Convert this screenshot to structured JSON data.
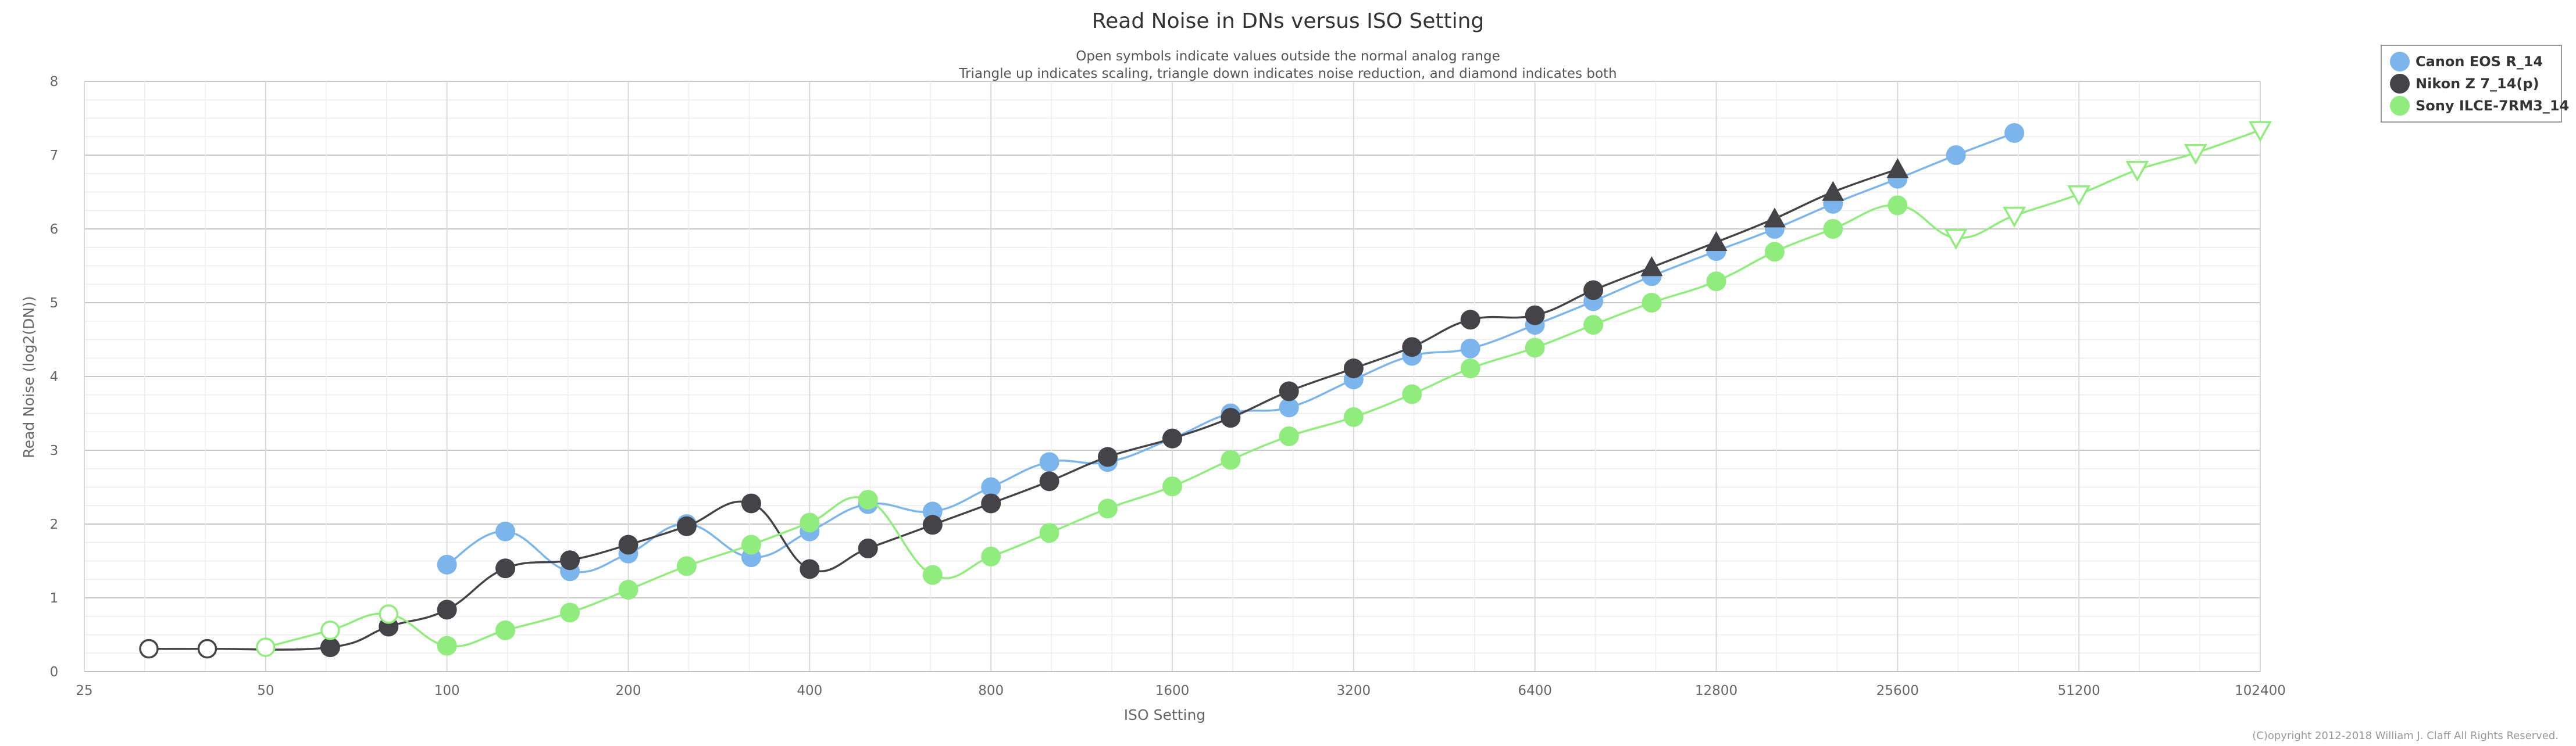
{
  "chart_data": {
    "type": "line",
    "title": "Read Noise in DNs versus ISO Setting",
    "subtitle_lines": [
      "Open symbols indicate values outside the normal analog range",
      "Triangle up indicates scaling, triangle down indicates noise reduction, and diamond indicates both"
    ],
    "xlabel": "ISO Setting",
    "ylabel": "Read Noise (log2(DN))",
    "x_scale": "log2",
    "xlim": [
      25,
      102400
    ],
    "ylim": [
      0,
      8
    ],
    "x_ticks": [
      25,
      50,
      100,
      200,
      400,
      800,
      1600,
      3200,
      6400,
      12800,
      25600,
      51200,
      102400
    ],
    "y_ticks": [
      0,
      1,
      2,
      3,
      4,
      5,
      6,
      7,
      8
    ],
    "grid": true,
    "legend_position": "top-right",
    "copyright": "(C)opyright 2012-2018 William J. Claff All Rights Reserved.",
    "series": [
      {
        "name": "Canon EOS R_14",
        "color": "#7cb5ec",
        "points": [
          {
            "x": 100,
            "y": 1.45,
            "m": "circle"
          },
          {
            "x": 125,
            "y": 1.9,
            "m": "circle"
          },
          {
            "x": 160,
            "y": 1.36,
            "m": "circle"
          },
          {
            "x": 200,
            "y": 1.6,
            "m": "circle"
          },
          {
            "x": 250,
            "y": 2.0,
            "m": "circle"
          },
          {
            "x": 320,
            "y": 1.55,
            "m": "circle"
          },
          {
            "x": 400,
            "y": 1.9,
            "m": "circle"
          },
          {
            "x": 500,
            "y": 2.27,
            "m": "circle"
          },
          {
            "x": 640,
            "y": 2.17,
            "m": "circle"
          },
          {
            "x": 800,
            "y": 2.5,
            "m": "circle"
          },
          {
            "x": 1000,
            "y": 2.84,
            "m": "circle"
          },
          {
            "x": 1250,
            "y": 2.84,
            "m": "circle"
          },
          {
            "x": 1600,
            "y": 3.16,
            "m": "circle"
          },
          {
            "x": 2000,
            "y": 3.5,
            "m": "circle"
          },
          {
            "x": 2500,
            "y": 3.58,
            "m": "circle"
          },
          {
            "x": 3200,
            "y": 3.96,
            "m": "circle"
          },
          {
            "x": 4000,
            "y": 4.28,
            "m": "circle"
          },
          {
            "x": 5000,
            "y": 4.38,
            "m": "circle"
          },
          {
            "x": 6400,
            "y": 4.7,
            "m": "circle"
          },
          {
            "x": 8000,
            "y": 5.02,
            "m": "circle"
          },
          {
            "x": 10000,
            "y": 5.36,
            "m": "circle"
          },
          {
            "x": 12800,
            "y": 5.7,
            "m": "circle"
          },
          {
            "x": 16000,
            "y": 6.0,
            "m": "circle"
          },
          {
            "x": 20000,
            "y": 6.34,
            "m": "circle"
          },
          {
            "x": 25600,
            "y": 6.68,
            "m": "circle"
          },
          {
            "x": 32000,
            "y": 7.0,
            "m": "circle"
          },
          {
            "x": 40000,
            "y": 7.3,
            "m": "circle"
          }
        ]
      },
      {
        "name": "Nikon Z 7_14(p)",
        "color": "#434348",
        "points": [
          {
            "x": 32,
            "y": 0.31,
            "m": "circle-open"
          },
          {
            "x": 40,
            "y": 0.31,
            "m": "circle-open"
          },
          {
            "x": 64,
            "y": 0.33,
            "m": "circle"
          },
          {
            "x": 80,
            "y": 0.61,
            "m": "circle"
          },
          {
            "x": 100,
            "y": 0.84,
            "m": "circle"
          },
          {
            "x": 125,
            "y": 1.4,
            "m": "circle"
          },
          {
            "x": 160,
            "y": 1.51,
            "m": "circle"
          },
          {
            "x": 200,
            "y": 1.72,
            "m": "circle"
          },
          {
            "x": 250,
            "y": 1.97,
            "m": "circle"
          },
          {
            "x": 320,
            "y": 2.28,
            "m": "circle"
          },
          {
            "x": 400,
            "y": 1.39,
            "m": "circle"
          },
          {
            "x": 500,
            "y": 1.67,
            "m": "circle"
          },
          {
            "x": 640,
            "y": 1.99,
            "m": "circle"
          },
          {
            "x": 800,
            "y": 2.28,
            "m": "circle"
          },
          {
            "x": 1000,
            "y": 2.58,
            "m": "circle"
          },
          {
            "x": 1250,
            "y": 2.91,
            "m": "circle"
          },
          {
            "x": 1600,
            "y": 3.16,
            "m": "circle"
          },
          {
            "x": 2000,
            "y": 3.44,
            "m": "circle"
          },
          {
            "x": 2500,
            "y": 3.8,
            "m": "circle"
          },
          {
            "x": 3200,
            "y": 4.11,
            "m": "circle"
          },
          {
            "x": 4000,
            "y": 4.4,
            "m": "circle"
          },
          {
            "x": 5000,
            "y": 4.77,
            "m": "circle"
          },
          {
            "x": 6400,
            "y": 4.83,
            "m": "circle"
          },
          {
            "x": 8000,
            "y": 5.17,
            "m": "circle"
          },
          {
            "x": 10000,
            "y": 5.48,
            "m": "triangle-up"
          },
          {
            "x": 12800,
            "y": 5.82,
            "m": "triangle-up"
          },
          {
            "x": 16000,
            "y": 6.14,
            "m": "triangle-up"
          },
          {
            "x": 20000,
            "y": 6.5,
            "m": "triangle-up"
          },
          {
            "x": 25600,
            "y": 6.81,
            "m": "triangle-up"
          }
        ]
      },
      {
        "name": "Sony ILCE-7RM3_14",
        "color": "#90ed7d",
        "points": [
          {
            "x": 50,
            "y": 0.33,
            "m": "circle-open"
          },
          {
            "x": 64,
            "y": 0.56,
            "m": "circle-open"
          },
          {
            "x": 80,
            "y": 0.78,
            "m": "circle-open"
          },
          {
            "x": 100,
            "y": 0.35,
            "m": "circle"
          },
          {
            "x": 125,
            "y": 0.56,
            "m": "circle"
          },
          {
            "x": 160,
            "y": 0.8,
            "m": "circle"
          },
          {
            "x": 200,
            "y": 1.11,
            "m": "circle"
          },
          {
            "x": 250,
            "y": 1.43,
            "m": "circle"
          },
          {
            "x": 320,
            "y": 1.72,
            "m": "circle"
          },
          {
            "x": 400,
            "y": 2.02,
            "m": "circle"
          },
          {
            "x": 500,
            "y": 2.33,
            "m": "circle"
          },
          {
            "x": 640,
            "y": 1.31,
            "m": "circle"
          },
          {
            "x": 800,
            "y": 1.56,
            "m": "circle"
          },
          {
            "x": 1000,
            "y": 1.88,
            "m": "circle"
          },
          {
            "x": 1250,
            "y": 2.21,
            "m": "circle"
          },
          {
            "x": 1600,
            "y": 2.51,
            "m": "circle"
          },
          {
            "x": 2000,
            "y": 2.87,
            "m": "circle"
          },
          {
            "x": 2500,
            "y": 3.19,
            "m": "circle"
          },
          {
            "x": 3200,
            "y": 3.45,
            "m": "circle"
          },
          {
            "x": 4000,
            "y": 3.76,
            "m": "circle"
          },
          {
            "x": 5000,
            "y": 4.11,
            "m": "circle"
          },
          {
            "x": 6400,
            "y": 4.39,
            "m": "circle"
          },
          {
            "x": 8000,
            "y": 4.7,
            "m": "circle"
          },
          {
            "x": 10000,
            "y": 5.0,
            "m": "circle"
          },
          {
            "x": 12800,
            "y": 5.29,
            "m": "circle"
          },
          {
            "x": 16000,
            "y": 5.69,
            "m": "circle"
          },
          {
            "x": 20000,
            "y": 6.0,
            "m": "circle"
          },
          {
            "x": 25600,
            "y": 6.32,
            "m": "circle"
          },
          {
            "x": 32000,
            "y": 5.88,
            "m": "triangle-down-open"
          },
          {
            "x": 40000,
            "y": 6.18,
            "m": "triangle-down-open"
          },
          {
            "x": 51200,
            "y": 6.47,
            "m": "triangle-down-open"
          },
          {
            "x": 64000,
            "y": 6.8,
            "m": "triangle-down-open"
          },
          {
            "x": 80000,
            "y": 7.03,
            "m": "triangle-down-open"
          },
          {
            "x": 102400,
            "y": 7.34,
            "m": "triangle-down-open"
          }
        ]
      }
    ]
  }
}
